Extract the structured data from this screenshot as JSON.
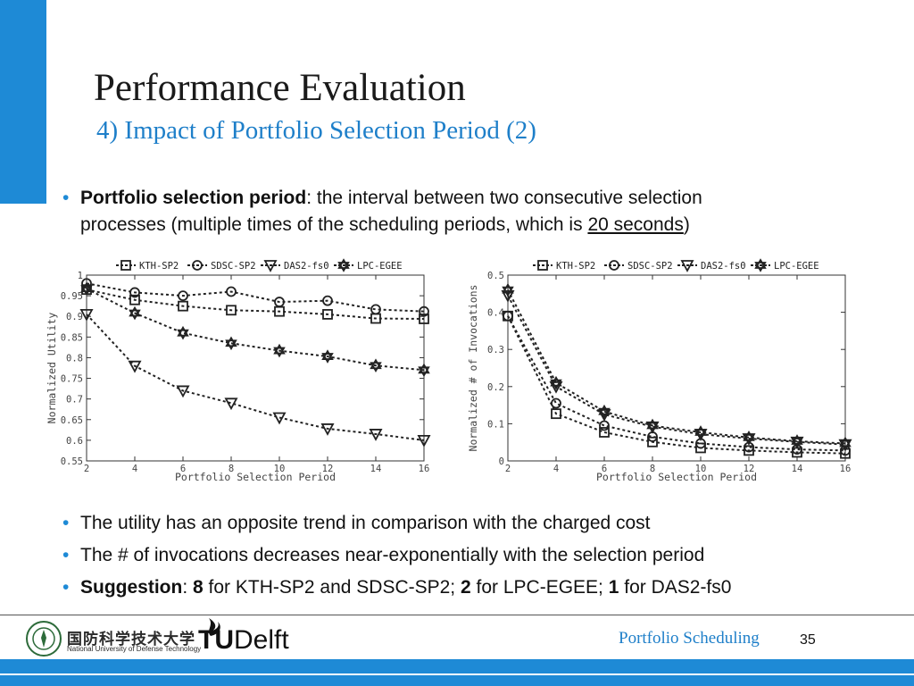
{
  "slide": {
    "title": "Performance Evaluation",
    "subtitle": "4) Impact of Portfolio Selection Period (2)",
    "bullet1": {
      "term": "Portfolio selection period",
      "text_a": ": the interval between two consecutive selection",
      "text_b": "processes (multiple times of the scheduling periods, which is ",
      "link": "20 seconds",
      "text_c": ")"
    },
    "bullet2": "The utility has an opposite trend in comparison with the charged cost",
    "bullet3": "The # of invocations decreases near-exponentially with the selection period",
    "bullet4": {
      "term": "Suggestion",
      "p1": ": ",
      "v1": "8",
      "p2": " for KTH-SP2 and SDSC-SP2; ",
      "v2": "2",
      "p3": " for LPC-EGEE; ",
      "v3": "1",
      "p4": " for DAS2-fs0"
    },
    "bullet_glyph": "•"
  },
  "footer": {
    "text": "Portfolio Scheduling",
    "page": "35",
    "nudt_cn": "国防科学技术大学",
    "nudt_en": "National University of Defense Technology",
    "tud_t": "TU",
    "tud_delft": "Delft"
  },
  "colors": {
    "accent": "#1e8ad6",
    "subtitle": "#1e7fc9"
  },
  "chart_data": [
    {
      "type": "line",
      "xlabel": "Portfolio Selection Period",
      "ylabel": "Normalized Utility",
      "x": [
        2,
        4,
        6,
        8,
        10,
        12,
        14,
        16
      ],
      "xlim": [
        2,
        16
      ],
      "ylim": [
        0.55,
        1
      ],
      "xticks": [
        "2",
        "4",
        "6",
        "8",
        "10",
        "12",
        "14",
        "16"
      ],
      "yticks": [
        "0.55",
        "0.6",
        "0.65",
        "0.7",
        "0.75",
        "0.8",
        "0.85",
        "0.9",
        "0.95",
        "1"
      ],
      "ytick_vals": [
        0.55,
        0.6,
        0.65,
        0.7,
        0.75,
        0.8,
        0.85,
        0.9,
        0.95,
        1
      ],
      "legend": "top",
      "series": [
        {
          "name": "KTH-SP2",
          "marker": "square",
          "values": [
            0.965,
            0.94,
            0.925,
            0.915,
            0.912,
            0.905,
            0.895,
            0.894
          ]
        },
        {
          "name": "SDSC-SP2",
          "marker": "circle",
          "values": [
            0.98,
            0.958,
            0.95,
            0.96,
            0.935,
            0.938,
            0.917,
            0.912
          ]
        },
        {
          "name": "DAS2-fs0",
          "marker": "triangle-down",
          "values": [
            0.905,
            0.78,
            0.72,
            0.69,
            0.655,
            0.628,
            0.615,
            0.6
          ]
        },
        {
          "name": "LPC-EGEE",
          "marker": "hexagram",
          "values": [
            0.967,
            0.908,
            0.86,
            0.835,
            0.817,
            0.803,
            0.781,
            0.77
          ]
        }
      ]
    },
    {
      "type": "line",
      "xlabel": "Portfolio Selection Period",
      "ylabel": "Normalized # of Invocations",
      "x": [
        2,
        4,
        6,
        8,
        10,
        12,
        14,
        16
      ],
      "xlim": [
        2,
        16
      ],
      "ylim": [
        0,
        0.5
      ],
      "xticks": [
        "2",
        "4",
        "6",
        "8",
        "10",
        "12",
        "14",
        "16"
      ],
      "yticks": [
        "0",
        "0.1",
        "0.2",
        "0.3",
        "0.4",
        "0.5"
      ],
      "ytick_vals": [
        0,
        0.1,
        0.2,
        0.3,
        0.4,
        0.5
      ],
      "legend": "top",
      "series": [
        {
          "name": "KTH-SP2",
          "marker": "square",
          "values": [
            0.39,
            0.127,
            0.077,
            0.051,
            0.035,
            0.028,
            0.023,
            0.02
          ]
        },
        {
          "name": "SDSC-SP2",
          "marker": "circle",
          "values": [
            0.39,
            0.155,
            0.095,
            0.065,
            0.047,
            0.037,
            0.031,
            0.028
          ]
        },
        {
          "name": "DAS2-fs0",
          "marker": "triangle-down",
          "values": [
            0.445,
            0.2,
            0.125,
            0.092,
            0.072,
            0.06,
            0.051,
            0.044
          ]
        },
        {
          "name": "LPC-EGEE",
          "marker": "hexagram",
          "values": [
            0.46,
            0.21,
            0.133,
            0.095,
            0.077,
            0.063,
            0.053,
            0.047
          ]
        }
      ]
    }
  ]
}
